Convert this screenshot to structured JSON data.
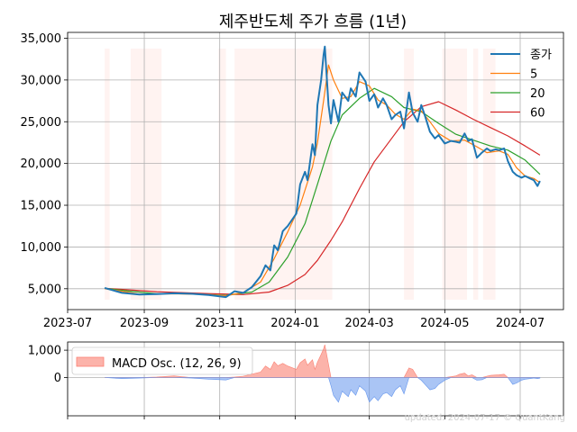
{
  "chart_data": [
    {
      "type": "line",
      "title": "제주반도체 주가 흐름 (1년)",
      "xlabel": "",
      "ylabel": "",
      "x_ticks": [
        "2023-07",
        "2023-09",
        "2023-11",
        "2024-01",
        "2024-03",
        "2024-05",
        "2024-07"
      ],
      "y_ticks": [
        "5,000",
        "10,000",
        "15,000",
        "20,000",
        "25,000",
        "30,000",
        "35,000"
      ],
      "xlim": [
        "2023-07-01",
        "2024-08-05"
      ],
      "ylim": [
        2500,
        35700
      ],
      "grid": true,
      "legend_position": "top-right",
      "shaded_periods": [
        [
          "2023-07-31",
          "2023-08-04"
        ],
        [
          "2023-08-21",
          "2023-09-15"
        ],
        [
          "2023-10-31",
          "2023-11-06"
        ],
        [
          "2023-11-13",
          "2024-01-31"
        ],
        [
          "2024-03-29",
          "2024-04-06"
        ],
        [
          "2024-04-29",
          "2024-05-19"
        ],
        [
          "2024-05-24",
          "2024-05-28"
        ],
        [
          "2024-06-01",
          "2024-06-11"
        ]
      ],
      "series": [
        {
          "name": "종가",
          "color": "#1f77b4",
          "points": [
            [
              "2023-07-31",
              5100
            ],
            [
              "2023-08-07",
              4800
            ],
            [
              "2023-08-14",
              4500
            ],
            [
              "2023-08-28",
              4300
            ],
            [
              "2023-09-11",
              4350
            ],
            [
              "2023-09-25",
              4450
            ],
            [
              "2023-10-09",
              4400
            ],
            [
              "2023-10-23",
              4250
            ],
            [
              "2023-11-06",
              4000
            ],
            [
              "2023-11-13",
              4700
            ],
            [
              "2023-11-20",
              4500
            ],
            [
              "2023-11-27",
              5200
            ],
            [
              "2023-12-04",
              6500
            ],
            [
              "2023-12-08",
              7800
            ],
            [
              "2023-12-12",
              7200
            ],
            [
              "2023-12-15",
              10200
            ],
            [
              "2023-12-18",
              9600
            ],
            [
              "2023-12-22",
              11900
            ],
            [
              "2023-12-26",
              12500
            ],
            [
              "2024-01-02",
              14000
            ],
            [
              "2024-01-05",
              17500
            ],
            [
              "2024-01-09",
              19000
            ],
            [
              "2024-01-11",
              18000
            ],
            [
              "2024-01-15",
              22300
            ],
            [
              "2024-01-17",
              21000
            ],
            [
              "2024-01-19",
              27000
            ],
            [
              "2024-01-22",
              30000
            ],
            [
              "2024-01-24",
              33000
            ],
            [
              "2024-01-25",
              34000
            ],
            [
              "2024-01-28",
              27000
            ],
            [
              "2024-01-30",
              24800
            ],
            [
              "2024-02-01",
              27600
            ],
            [
              "2024-02-05",
              25000
            ],
            [
              "2024-02-08",
              28500
            ],
            [
              "2024-02-13",
              27500
            ],
            [
              "2024-02-15",
              29000
            ],
            [
              "2024-02-19",
              28000
            ],
            [
              "2024-02-22",
              30900
            ],
            [
              "2024-02-27",
              29800
            ],
            [
              "2024-03-01",
              27500
            ],
            [
              "2024-03-05",
              28300
            ],
            [
              "2024-03-08",
              26700
            ],
            [
              "2024-03-12",
              27800
            ],
            [
              "2024-03-15",
              27000
            ],
            [
              "2024-03-19",
              25300
            ],
            [
              "2024-03-22",
              25800
            ],
            [
              "2024-03-26",
              26200
            ],
            [
              "2024-03-29",
              24200
            ],
            [
              "2024-04-02",
              28500
            ],
            [
              "2024-04-05",
              26100
            ],
            [
              "2024-04-09",
              25000
            ],
            [
              "2024-04-12",
              27000
            ],
            [
              "2024-04-15",
              25700
            ],
            [
              "2024-04-19",
              23800
            ],
            [
              "2024-04-23",
              23000
            ],
            [
              "2024-04-26",
              23400
            ],
            [
              "2024-05-01",
              22400
            ],
            [
              "2024-05-06",
              22700
            ],
            [
              "2024-05-10",
              22600
            ],
            [
              "2024-05-13",
              22500
            ],
            [
              "2024-05-17",
              23600
            ],
            [
              "2024-05-20",
              22700
            ],
            [
              "2024-05-23",
              22900
            ],
            [
              "2024-05-27",
              20700
            ],
            [
              "2024-05-31",
              21300
            ],
            [
              "2024-06-04",
              21800
            ],
            [
              "2024-06-07",
              21500
            ],
            [
              "2024-06-11",
              21700
            ],
            [
              "2024-06-14",
              21600
            ],
            [
              "2024-06-18",
              21800
            ],
            [
              "2024-06-21",
              20300
            ],
            [
              "2024-06-25",
              19000
            ],
            [
              "2024-06-28",
              18600
            ],
            [
              "2024-07-02",
              18300
            ],
            [
              "2024-07-05",
              18500
            ],
            [
              "2024-07-09",
              18200
            ],
            [
              "2024-07-12",
              18000
            ],
            [
              "2024-07-15",
              17300
            ],
            [
              "2024-07-17",
              17900
            ]
          ]
        },
        {
          "name": "5",
          "color": "#ff7f0e",
          "points": [
            [
              "2023-07-31",
              5000
            ],
            [
              "2023-08-14",
              4700
            ],
            [
              "2023-08-28",
              4350
            ],
            [
              "2023-09-25",
              4400
            ],
            [
              "2023-10-23",
              4300
            ],
            [
              "2023-11-06",
              4150
            ],
            [
              "2023-11-20",
              4550
            ],
            [
              "2023-12-04",
              5800
            ],
            [
              "2023-12-15",
              8600
            ],
            [
              "2023-12-26",
              11800
            ],
            [
              "2024-01-05",
              15000
            ],
            [
              "2024-01-15",
              19600
            ],
            [
              "2024-01-19",
              22500
            ],
            [
              "2024-01-24",
              27500
            ],
            [
              "2024-01-28",
              31800
            ],
            [
              "2024-02-01",
              30000
            ],
            [
              "2024-02-08",
              27800
            ],
            [
              "2024-02-15",
              28000
            ],
            [
              "2024-02-22",
              29800
            ],
            [
              "2024-03-01",
              29300
            ],
            [
              "2024-03-08",
              27600
            ],
            [
              "2024-03-15",
              27000
            ],
            [
              "2024-03-22",
              25900
            ],
            [
              "2024-03-29",
              25300
            ],
            [
              "2024-04-05",
              26500
            ],
            [
              "2024-04-12",
              26300
            ],
            [
              "2024-04-19",
              25000
            ],
            [
              "2024-04-26",
              23600
            ],
            [
              "2024-05-06",
              22700
            ],
            [
              "2024-05-17",
              22800
            ],
            [
              "2024-05-27",
              22000
            ],
            [
              "2024-06-04",
              21300
            ],
            [
              "2024-06-14",
              21500
            ],
            [
              "2024-06-21",
              21100
            ],
            [
              "2024-06-28",
              19500
            ],
            [
              "2024-07-05",
              18500
            ],
            [
              "2024-07-12",
              18200
            ],
            [
              "2024-07-17",
              17700
            ]
          ]
        },
        {
          "name": "20",
          "color": "#2ca02c",
          "points": [
            [
              "2023-07-31",
              5050
            ],
            [
              "2023-08-21",
              4700
            ],
            [
              "2023-09-11",
              4400
            ],
            [
              "2023-10-09",
              4400
            ],
            [
              "2023-11-06",
              4200
            ],
            [
              "2023-11-27",
              4600
            ],
            [
              "2023-12-11",
              5800
            ],
            [
              "2023-12-26",
              8800
            ],
            [
              "2024-01-09",
              12800
            ],
            [
              "2024-01-19",
              17500
            ],
            [
              "2024-01-30",
              22700
            ],
            [
              "2024-02-08",
              25800
            ],
            [
              "2024-02-22",
              27800
            ],
            [
              "2024-03-05",
              29000
            ],
            [
              "2024-03-19",
              28000
            ],
            [
              "2024-03-29",
              26700
            ],
            [
              "2024-04-12",
              26200
            ],
            [
              "2024-04-26",
              24800
            ],
            [
              "2024-05-10",
              23500
            ],
            [
              "2024-05-24",
              22800
            ],
            [
              "2024-06-07",
              22100
            ],
            [
              "2024-06-21",
              21600
            ],
            [
              "2024-07-05",
              20400
            ],
            [
              "2024-07-17",
              18700
            ]
          ]
        },
        {
          "name": "60",
          "color": "#d62728",
          "points": [
            [
              "2023-07-31",
              5050
            ],
            [
              "2023-09-11",
              4650
            ],
            [
              "2023-10-23",
              4420
            ],
            [
              "2023-11-20",
              4300
            ],
            [
              "2023-12-11",
              4600
            ],
            [
              "2023-12-26",
              5400
            ],
            [
              "2024-01-09",
              6700
            ],
            [
              "2024-01-19",
              8400
            ],
            [
              "2024-01-30",
              10800
            ],
            [
              "2024-02-08",
              13000
            ],
            [
              "2024-02-22",
              17000
            ],
            [
              "2024-03-05",
              20200
            ],
            [
              "2024-03-19",
              23000
            ],
            [
              "2024-03-29",
              25000
            ],
            [
              "2024-04-12",
              26800
            ],
            [
              "2024-04-26",
              27400
            ],
            [
              "2024-05-10",
              26400
            ],
            [
              "2024-05-24",
              25300
            ],
            [
              "2024-06-07",
              24300
            ],
            [
              "2024-06-21",
              23300
            ],
            [
              "2024-07-05",
              22100
            ],
            [
              "2024-07-17",
              21000
            ]
          ]
        }
      ]
    },
    {
      "type": "area",
      "title": "",
      "legend": "MACD Osc. (12, 26, 9)",
      "y_ticks": [
        "0",
        "1,000"
      ],
      "ylim": [
        -1400,
        1300
      ],
      "legend_position": "top-left",
      "positive_color": "#fa8072",
      "negative_color": "#6495ed",
      "points": [
        [
          "2023-07-31",
          0
        ],
        [
          "2023-08-07",
          -20
        ],
        [
          "2023-08-14",
          -40
        ],
        [
          "2023-08-28",
          -20
        ],
        [
          "2023-09-11",
          20
        ],
        [
          "2023-09-25",
          60
        ],
        [
          "2023-10-09",
          -20
        ],
        [
          "2023-10-23",
          -60
        ],
        [
          "2023-11-06",
          -90
        ],
        [
          "2023-11-13",
          20
        ],
        [
          "2023-11-20",
          50
        ],
        [
          "2023-12-04",
          200
        ],
        [
          "2023-12-08",
          420
        ],
        [
          "2023-12-12",
          300
        ],
        [
          "2023-12-15",
          580
        ],
        [
          "2023-12-18",
          430
        ],
        [
          "2023-12-22",
          520
        ],
        [
          "2023-12-26",
          420
        ],
        [
          "2024-01-02",
          300
        ],
        [
          "2024-01-05",
          540
        ],
        [
          "2024-01-09",
          680
        ],
        [
          "2024-01-11",
          450
        ],
        [
          "2024-01-15",
          650
        ],
        [
          "2024-01-17",
          300
        ],
        [
          "2024-01-19",
          560
        ],
        [
          "2024-01-22",
          850
        ],
        [
          "2024-01-24",
          1050
        ],
        [
          "2024-01-25",
          1200
        ],
        [
          "2024-01-28",
          480
        ],
        [
          "2024-01-30",
          -300
        ],
        [
          "2024-02-01",
          -650
        ],
        [
          "2024-02-05",
          -900
        ],
        [
          "2024-02-08",
          -500
        ],
        [
          "2024-02-13",
          -700
        ],
        [
          "2024-02-15",
          -450
        ],
        [
          "2024-02-19",
          -650
        ],
        [
          "2024-02-22",
          -300
        ],
        [
          "2024-02-27",
          -500
        ],
        [
          "2024-03-01",
          -900
        ],
        [
          "2024-03-05",
          -700
        ],
        [
          "2024-03-08",
          -850
        ],
        [
          "2024-03-12",
          -600
        ],
        [
          "2024-03-15",
          -550
        ],
        [
          "2024-03-19",
          -700
        ],
        [
          "2024-03-22",
          -450
        ],
        [
          "2024-03-26",
          -300
        ],
        [
          "2024-03-29",
          -600
        ],
        [
          "2024-04-02",
          350
        ],
        [
          "2024-04-05",
          300
        ],
        [
          "2024-04-09",
          0
        ],
        [
          "2024-04-12",
          -100
        ],
        [
          "2024-04-15",
          -250
        ],
        [
          "2024-04-19",
          -450
        ],
        [
          "2024-04-23",
          -400
        ],
        [
          "2024-04-26",
          -250
        ],
        [
          "2024-05-01",
          -100
        ],
        [
          "2024-05-06",
          30
        ],
        [
          "2024-05-10",
          60
        ],
        [
          "2024-05-13",
          120
        ],
        [
          "2024-05-17",
          160
        ],
        [
          "2024-05-20",
          60
        ],
        [
          "2024-05-23",
          100
        ],
        [
          "2024-05-27",
          -100
        ],
        [
          "2024-05-31",
          -80
        ],
        [
          "2024-06-04",
          50
        ],
        [
          "2024-06-07",
          80
        ],
        [
          "2024-06-11",
          90
        ],
        [
          "2024-06-14",
          100
        ],
        [
          "2024-06-18",
          120
        ],
        [
          "2024-06-21",
          0
        ],
        [
          "2024-06-25",
          -250
        ],
        [
          "2024-06-28",
          -200
        ],
        [
          "2024-07-02",
          -100
        ],
        [
          "2024-07-05",
          -60
        ],
        [
          "2024-07-09",
          -40
        ],
        [
          "2024-07-12",
          -20
        ],
        [
          "2024-07-15",
          -40
        ],
        [
          "2024-07-17",
          -20
        ]
      ]
    }
  ],
  "watermark": "updated: 2024-07-17 © QuantKang"
}
